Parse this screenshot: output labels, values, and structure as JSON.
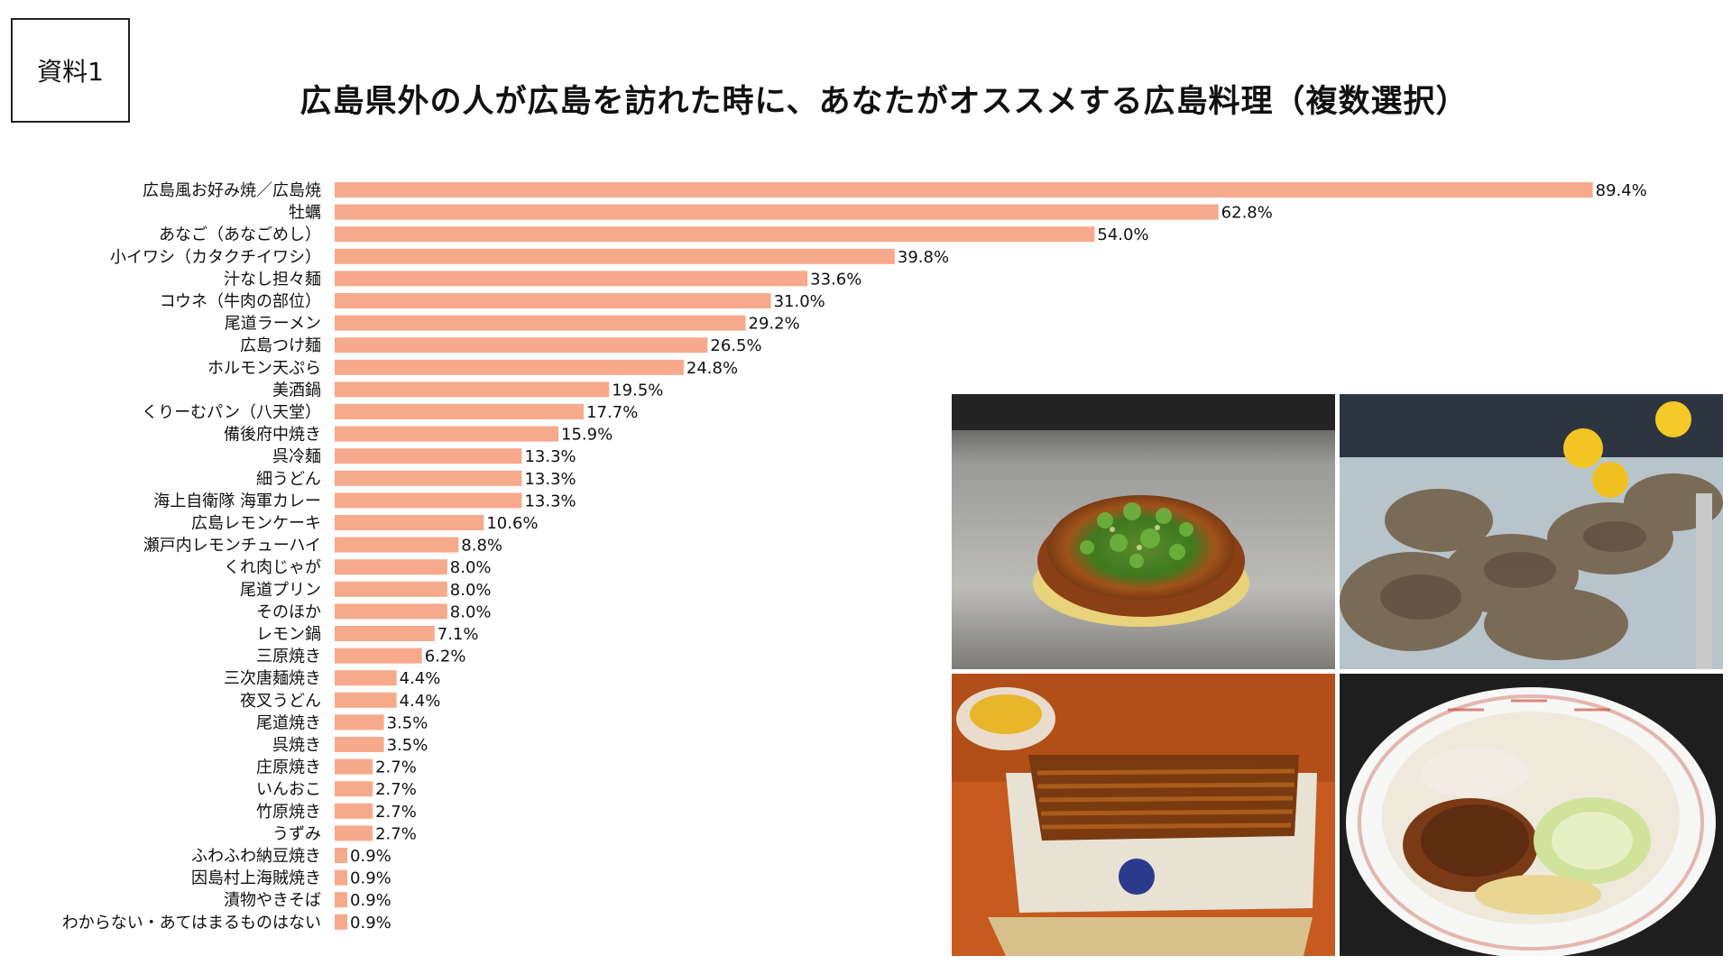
{
  "header": {
    "doc_label": "資料1",
    "title": "広島県外の人が広島を訪れた時に、あなたがオススメする広島料理（複数選択）"
  },
  "colors": {
    "bar": "#F7A98B",
    "text": "#111111"
  },
  "chart_data": {
    "type": "bar",
    "orientation": "horizontal",
    "title": "広島県外の人が広島を訪れた時に、あなたがオススメする広島料理（複数選択）",
    "xlabel": "",
    "ylabel": "",
    "xlim": [
      0,
      100
    ],
    "grid": false,
    "unit": "%",
    "categories": [
      "広島風お好み焼／広島焼",
      "牡蠣",
      "あなご（あなごめし）",
      "小イワシ（カタクチイワシ）",
      "汁なし担々麺",
      "コウネ（牛肉の部位）",
      "尾道ラーメン",
      "広島つけ麺",
      "ホルモン天ぷら",
      "美酒鍋",
      "くりーむパン（八天堂）",
      "備後府中焼き",
      "呉冷麺",
      "細うどん",
      "海上自衛隊 海軍カレー",
      "広島レモンケーキ",
      "瀬戸内レモンチューハイ",
      "くれ肉じゃが",
      "尾道プリン",
      "そのほか",
      "レモン鍋",
      "三原焼き",
      "三次唐麺焼き",
      "夜叉うどん",
      "尾道焼き",
      "呉焼き",
      "庄原焼き",
      "いんおこ",
      "竹原焼き",
      "うずみ",
      "ふわふわ納豆焼き",
      "因島村上海賊焼き",
      "漬物やきそば",
      "わからない・あてはまるものはない"
    ],
    "values": [
      89.4,
      62.8,
      54.0,
      39.8,
      33.6,
      31.0,
      29.2,
      26.5,
      24.8,
      19.5,
      17.7,
      15.9,
      13.3,
      13.3,
      13.3,
      10.6,
      8.8,
      8.0,
      8.0,
      8.0,
      7.1,
      6.2,
      4.4,
      4.4,
      3.5,
      3.5,
      2.7,
      2.7,
      2.7,
      2.7,
      0.9,
      0.9,
      0.9,
      0.9
    ],
    "value_labels": [
      "89.4%",
      "62.8%",
      "54.0%",
      "39.8%",
      "33.6%",
      "31.0%",
      "29.2%",
      "26.5%",
      "24.8%",
      "19.5%",
      "17.7%",
      "15.9%",
      "13.3%",
      "13.3%",
      "13.3%",
      "10.6%",
      "8.8%",
      "8.0%",
      "8.0%",
      "8.0%",
      "7.1%",
      "6.2%",
      "4.4%",
      "4.4%",
      "3.5%",
      "3.5%",
      "2.7%",
      "2.7%",
      "2.7%",
      "2.7%",
      "0.9%",
      "0.9%",
      "0.9%",
      "0.9%"
    ]
  },
  "photos": [
    {
      "icon": "okonomiyaki-photo"
    },
    {
      "icon": "oysters-photo"
    },
    {
      "icon": "anago-meshi-photo"
    },
    {
      "icon": "shirunashi-tantanmen-photo"
    }
  ]
}
